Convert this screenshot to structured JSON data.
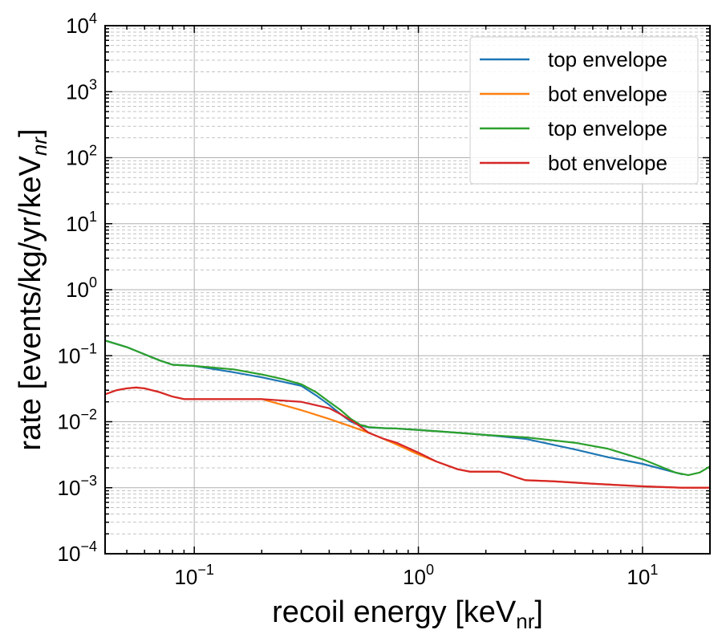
{
  "chart_data": {
    "type": "line",
    "xlabel": "recoil energy [keV",
    "xlabel_sub": "nr",
    "xlabel_end": "]",
    "ylabel": "rate [events/kg/yr/keV",
    "ylabel_sub": "nr",
    "ylabel_end": "]",
    "xscale": "log",
    "yscale": "log",
    "xlim": [
      0.04,
      20
    ],
    "ylim": [
      0.0001,
      10000
    ],
    "grid": true,
    "legend_position": "top-right",
    "x_ticks": [
      {
        "base": "10",
        "exp": "−1",
        "value": 0.1
      },
      {
        "base": "10",
        "exp": "0",
        "value": 1
      },
      {
        "base": "10",
        "exp": "1",
        "value": 10
      }
    ],
    "y_ticks": [
      {
        "base": "10",
        "exp": "−4",
        "value": 0.0001
      },
      {
        "base": "10",
        "exp": "−3",
        "value": 0.001
      },
      {
        "base": "10",
        "exp": "−2",
        "value": 0.01
      },
      {
        "base": "10",
        "exp": "−1",
        "value": 0.1
      },
      {
        "base": "10",
        "exp": "0",
        "value": 1
      },
      {
        "base": "10",
        "exp": "1",
        "value": 10
      },
      {
        "base": "10",
        "exp": "2",
        "value": 100
      },
      {
        "base": "10",
        "exp": "3",
        "value": 1000
      },
      {
        "base": "10",
        "exp": "4",
        "value": 10000
      }
    ],
    "series": [
      {
        "name": "top envelope",
        "color": "#1f77b4",
        "x": [
          0.04,
          0.05,
          0.06,
          0.07,
          0.08,
          0.1,
          0.15,
          0.2,
          0.25,
          0.3,
          0.35,
          0.4,
          0.45,
          0.5,
          0.55,
          0.6,
          0.7,
          0.8,
          1.0,
          1.5,
          2.0,
          3.0,
          5.0,
          7.0,
          10.0,
          15.0
        ],
        "y": [
          0.17,
          0.135,
          0.105,
          0.085,
          0.073,
          0.07,
          0.056,
          0.047,
          0.04,
          0.035,
          0.025,
          0.018,
          0.013,
          0.01,
          0.0088,
          0.0082,
          0.008,
          0.0079,
          0.0075,
          0.0068,
          0.0063,
          0.0055,
          0.0038,
          0.0029,
          0.0023,
          0.0016
        ]
      },
      {
        "name": "bot envelope",
        "color": "#ff7f0e",
        "x": [
          0.04,
          0.045,
          0.05,
          0.055,
          0.06,
          0.07,
          0.08,
          0.09,
          0.1,
          0.15,
          0.2,
          0.3,
          0.4,
          0.5,
          0.6,
          0.7,
          0.8,
          1.0,
          1.2,
          1.5,
          1.7,
          2.0,
          2.3,
          2.5,
          2.8,
          3.0,
          4.0,
          6.0,
          10.0,
          15.0,
          20.0
        ],
        "y": [
          0.026,
          0.03,
          0.032,
          0.033,
          0.032,
          0.028,
          0.024,
          0.022,
          0.022,
          0.022,
          0.022,
          0.015,
          0.011,
          0.0085,
          0.0068,
          0.0055,
          0.0045,
          0.0032,
          0.0025,
          0.0019,
          0.00175,
          0.00175,
          0.00175,
          0.0016,
          0.0014,
          0.0013,
          0.00125,
          0.00115,
          0.00105,
          0.001,
          0.001
        ]
      },
      {
        "name": "top envelope",
        "color": "#2ca02c",
        "x": [
          0.04,
          0.05,
          0.06,
          0.07,
          0.08,
          0.1,
          0.15,
          0.2,
          0.25,
          0.3,
          0.35,
          0.4,
          0.45,
          0.5,
          0.55,
          0.6,
          0.7,
          0.8,
          1.0,
          1.5,
          2.0,
          3.0,
          5.0,
          7.0,
          10.0,
          12.0,
          14.0,
          16.0,
          18.0,
          20.0
        ],
        "y": [
          0.17,
          0.135,
          0.105,
          0.085,
          0.073,
          0.07,
          0.062,
          0.052,
          0.044,
          0.037,
          0.028,
          0.02,
          0.015,
          0.011,
          0.009,
          0.0083,
          0.008,
          0.0079,
          0.0075,
          0.0068,
          0.0063,
          0.0058,
          0.0048,
          0.0039,
          0.0027,
          0.0021,
          0.0017,
          0.00155,
          0.0017,
          0.0021
        ]
      },
      {
        "name": "bot envelope",
        "color": "#d62728",
        "x": [
          0.04,
          0.045,
          0.05,
          0.055,
          0.06,
          0.07,
          0.08,
          0.09,
          0.1,
          0.15,
          0.2,
          0.3,
          0.4,
          0.45,
          0.5,
          0.55,
          0.6,
          0.7,
          0.8,
          1.0,
          1.2,
          1.5,
          1.7,
          2.0,
          2.3,
          2.5,
          2.8,
          3.0,
          4.0,
          6.0,
          10.0,
          15.0,
          20.0
        ],
        "y": [
          0.026,
          0.03,
          0.032,
          0.033,
          0.032,
          0.028,
          0.024,
          0.022,
          0.022,
          0.022,
          0.022,
          0.02,
          0.016,
          0.013,
          0.0105,
          0.0085,
          0.0068,
          0.0055,
          0.0048,
          0.0034,
          0.0025,
          0.0019,
          0.00175,
          0.00175,
          0.00175,
          0.0016,
          0.0014,
          0.0013,
          0.00125,
          0.00115,
          0.00105,
          0.001,
          0.001
        ]
      }
    ]
  }
}
